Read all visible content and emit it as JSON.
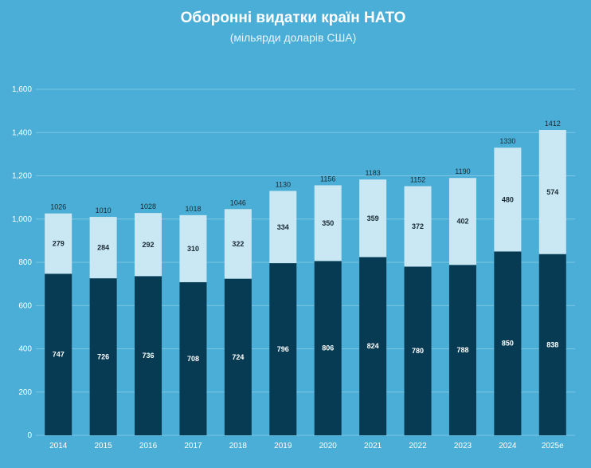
{
  "chart_data": {
    "type": "bar",
    "stacked": true,
    "title": "Оборонні видатки країн НАТО",
    "subtitle": "(мільярди доларів США)",
    "xlabel": "",
    "ylabel": "",
    "ylim": [
      0,
      1600
    ],
    "yticks": [
      0,
      200,
      400,
      600,
      800,
      1000,
      1200,
      1400,
      1600
    ],
    "ytick_labels": [
      "0",
      "200",
      "400",
      "600",
      "800",
      "1,000",
      "1,200",
      "1,400",
      "1,600"
    ],
    "grid": true,
    "categories": [
      "2014",
      "2015",
      "2016",
      "2017",
      "2018",
      "2019",
      "2020",
      "2021",
      "2022",
      "2023",
      "2024",
      "2025e"
    ],
    "series": [
      {
        "name": "lower",
        "color": "#073b54",
        "values": [
          747,
          726,
          736,
          708,
          724,
          796,
          806,
          824,
          780,
          788,
          850,
          838
        ]
      },
      {
        "name": "upper",
        "color": "#c9e8f4",
        "values": [
          279,
          284,
          292,
          310,
          322,
          334,
          350,
          359,
          372,
          402,
          480,
          574
        ]
      }
    ],
    "totals": [
      1026,
      1010,
      1028,
      1018,
      1046,
      1130,
      1156,
      1183,
      1152,
      1190,
      1330,
      1412
    ],
    "colors": {
      "background": "#4aaed6",
      "grid": "#7cc6e3",
      "text": "#ffffff"
    }
  }
}
